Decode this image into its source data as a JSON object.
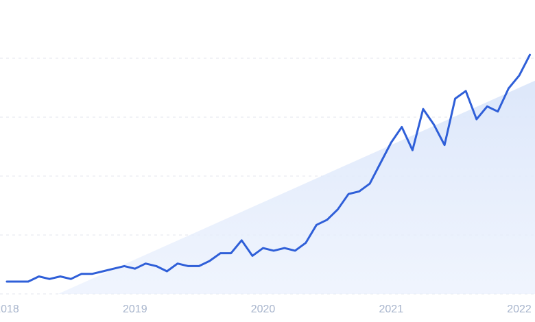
{
  "chart_data": {
    "type": "line",
    "title": "",
    "xlabel": "",
    "ylabel": "",
    "x_tick_labels": [
      "2018",
      "2019",
      "2020",
      "2021",
      "2022"
    ],
    "grid": "horizontal dashed",
    "legend": "none",
    "ylim": [
      0,
      100
    ],
    "colors": {
      "line": "#2f5fd8",
      "trend_fill": "#dde8fb",
      "grid": "#e3e6ee",
      "tick_text": "#a7b4cc"
    },
    "series": [
      {
        "x": [
          2018.0,
          2018.083,
          2018.167,
          2018.25,
          2018.333,
          2018.417,
          2018.5,
          2018.583,
          2018.667,
          2018.75,
          2018.833,
          2018.917,
          2019.0,
          2019.083,
          2019.167,
          2019.25,
          2019.333,
          2019.417,
          2019.5,
          2019.583,
          2019.667,
          2019.75,
          2019.833,
          2019.917,
          2020.0,
          2020.083,
          2020.167,
          2020.25,
          2020.333,
          2020.417,
          2020.5,
          2020.583,
          2020.667,
          2020.75,
          2020.833,
          2020.917,
          2021.0,
          2021.083,
          2021.167,
          2021.25,
          2021.333,
          2021.417,
          2021.5,
          2021.583,
          2021.667,
          2021.75,
          2021.833,
          2021.917,
          2022.0,
          2022.083
        ],
        "values": [
          0,
          0,
          0,
          2,
          1,
          2,
          1,
          3,
          3,
          4,
          5,
          6,
          5,
          7,
          6,
          4,
          7,
          6,
          6,
          8,
          11,
          11,
          16,
          10,
          13,
          12,
          13,
          12,
          15,
          22,
          24,
          28,
          34,
          35,
          38,
          46,
          54,
          60,
          51,
          67,
          61,
          53,
          71,
          74,
          63,
          68,
          66,
          75,
          80,
          88
        ]
      }
    ],
    "trend_band": {
      "x": [
        2018.4,
        2022.1
      ],
      "values": [
        -3,
        78
      ]
    }
  }
}
